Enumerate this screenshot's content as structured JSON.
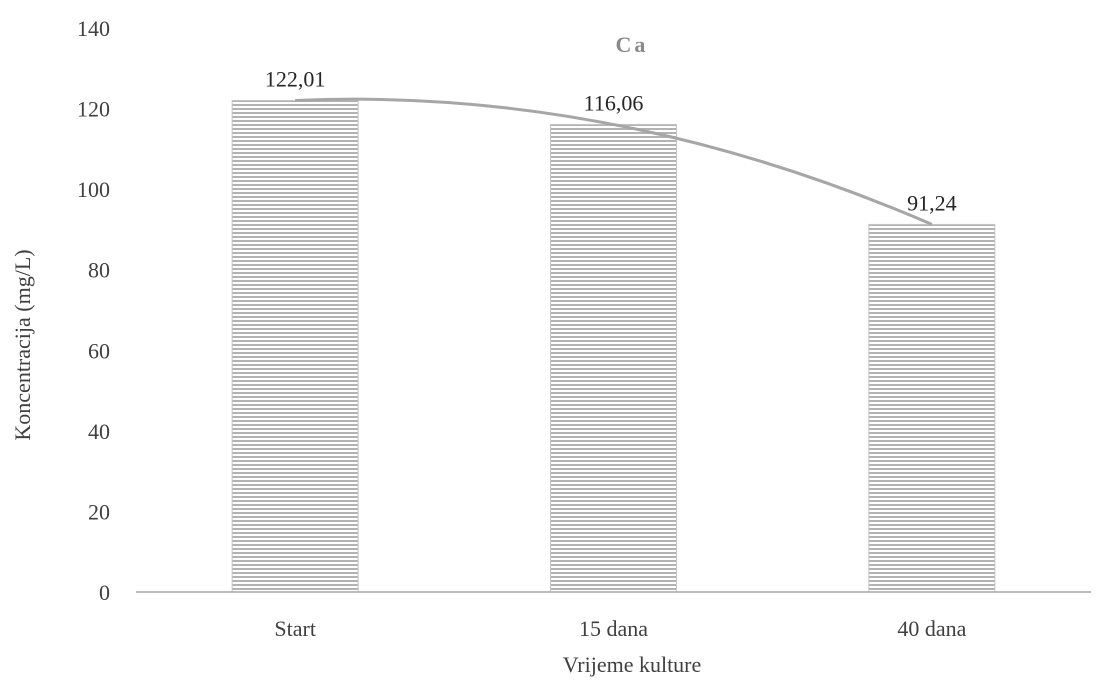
{
  "chart_data": {
    "type": "bar",
    "title": "",
    "categories": [
      "Start",
      "15 dana",
      "40 dana"
    ],
    "series": [
      {
        "name": "Ca",
        "values": [
          122.01,
          116.06,
          91.24
        ]
      }
    ],
    "data_labels": [
      "122,01",
      "116,06",
      "91,24"
    ],
    "trendline": {
      "type": "polynomial",
      "color": "#a6a6a6"
    },
    "xlabel": "Vrijeme kulture",
    "ylabel": "Koncentracija (mg/L)",
    "ylim": [
      0,
      140
    ],
    "yticks": [
      0,
      20,
      40,
      60,
      80,
      100,
      120,
      140
    ],
    "ytick_labels": [
      "0",
      "20",
      "40",
      "60",
      "80",
      "100",
      "120",
      "140"
    ],
    "series_label": "Ca",
    "grid": false,
    "colors": {
      "bar_fill": "#ffffff",
      "bar_stripe": "#b3b3b3",
      "axis": "#a6a6a6",
      "trendline": "#a6a6a6"
    }
  }
}
